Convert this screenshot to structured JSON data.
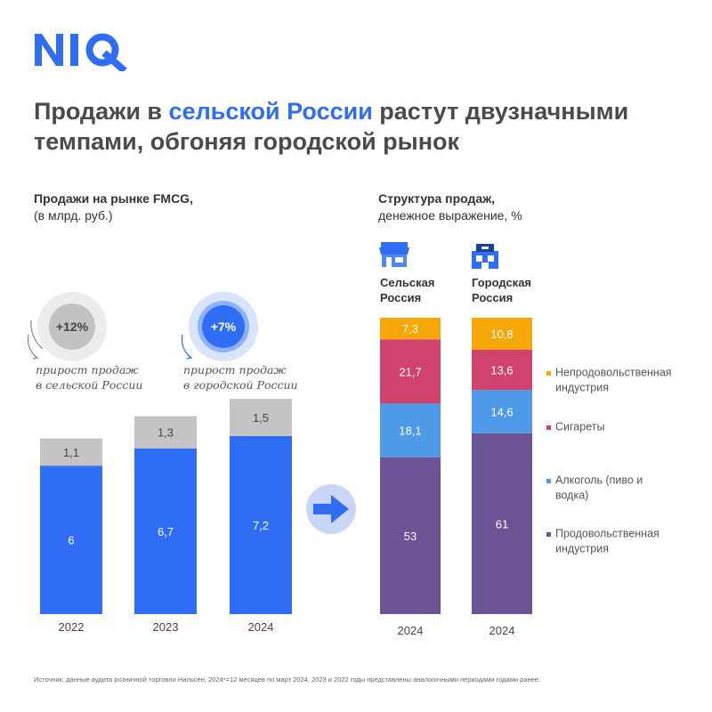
{
  "brand": {
    "logo_text": "NIQ",
    "color": "#2f6df5"
  },
  "headline": {
    "part1": "Продажи в ",
    "highlight": "сельской России",
    "part2": " растут двузначными темпами, обгоняя городской рынок"
  },
  "left_panel": {
    "title": "Продажи на рынке FMCG,",
    "subtitle": "(в млрд. руб.)",
    "rural_growth": {
      "value": "+12%",
      "caption_line1": "прирост продаж",
      "caption_line2": "в сельской России"
    },
    "urban_growth": {
      "value": "+7%",
      "caption_line1": "прирост продаж",
      "caption_line2": "в городской России"
    }
  },
  "right_panel": {
    "title": "Структура продаж,",
    "subtitle": "денежное выражение, %",
    "rural_label_1": "Сельская",
    "rural_label_2": "Россия",
    "urban_label_1": "Городская",
    "urban_label_2": "Россия"
  },
  "footnote": "Источник: данные аудита розничной торговли Нильсен; 2024*=12 месяцев по март 2024, 2023 и 2022 годы представлены аналогичными периодами годами ранее.",
  "chart_data": [
    {
      "type": "bar",
      "stacked": true,
      "categories": [
        "2022",
        "2023",
        "2024"
      ],
      "series": [
        {
          "values": [
            6,
            6.7,
            7.2
          ],
          "labels": [
            "6",
            "6,7",
            "7,2"
          ],
          "color": "#2f6df5"
        },
        {
          "values": [
            1.1,
            1.3,
            1.5
          ],
          "labels": [
            "1,1",
            "1,3",
            "1,5"
          ],
          "color": "#c4c4c4"
        }
      ]
    },
    {
      "type": "bar",
      "stacked": true,
      "percent": true,
      "categories": [
        "2024",
        "2024"
      ],
      "series": [
        {
          "name": "Продовольственная индустрия",
          "legend_line1": "Продовольственная",
          "legend_line2": "индустрия",
          "values": [
            53,
            61
          ],
          "labels": [
            "53",
            "61"
          ],
          "color": "#6b5396"
        },
        {
          "name": "Алкоголь (пиво и водка)",
          "legend_line1": "Алкоголь (пиво и",
          "legend_line2": "водка)",
          "values": [
            18.1,
            14.6
          ],
          "labels": [
            "18,1",
            "14,6"
          ],
          "color": "#4f9ae8"
        },
        {
          "name": "Сигареты",
          "legend_line1": "Сигареты",
          "legend_line2": "",
          "values": [
            21.7,
            13.6
          ],
          "labels": [
            "21,7",
            "13,6"
          ],
          "color": "#d0436f"
        },
        {
          "name": "Непродовольственная индустрия",
          "legend_line1": "Непродовольственная",
          "legend_line2": "индустрия",
          "values": [
            7.3,
            10.8
          ],
          "labels": [
            "7,3",
            "10,8"
          ],
          "color": "#f6a808"
        }
      ]
    }
  ]
}
